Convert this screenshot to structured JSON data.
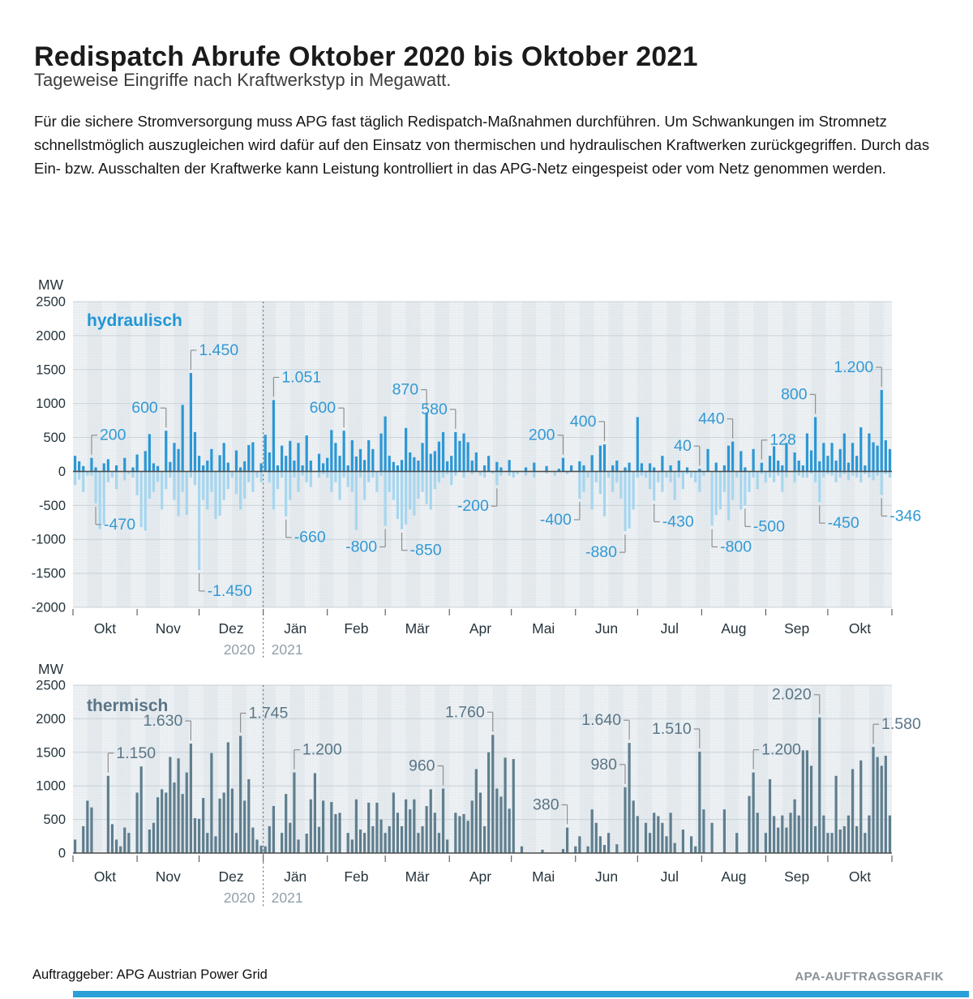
{
  "header": {
    "title": "Redispatch Abrufe Oktober 2020 bis Oktober 2021",
    "subtitle": "Tageweise Eingriffe nach Kraftwerkstyp in Megawatt.",
    "paragraph": "Für die sichere Stromversorgung muss APG fast täglich Redispatch-Maßnahmen durchführen. Um Schwankungen im Stromnetz schnellstmöglich auszugleichen wird dafür auf den Einsatz von thermischen und hydraulischen Kraftwerken zurückgegriffen. Durch das Ein- bzw. Ausschalten der Kraftwerke kann Leistung kontrolliert in das APG-Netz eingespeist oder vom Netz genommen werden."
  },
  "footer": {
    "client": "Auftraggeber: APG Austrian Power Grid",
    "credit": "APA-AUFTRAGSGRAFIK"
  },
  "colors": {
    "hydro_pos": "#2b97d5",
    "hydro_neg": "#a7d6ef",
    "hydro_label": "#2196d6",
    "thermal": "#5f7e8e",
    "thermal_label": "#5a7586",
    "annotation_hydro": "#3399d4",
    "annotation_thermal": "#5a7586",
    "axis_text": "#25343c",
    "year_text": "#8fa0ab",
    "connector": "#8f8f8f",
    "grid": "#c8d3d9",
    "zero_axis": "#4d4d4d",
    "band_a": "#edf1f4",
    "band_b": "#e4eaee",
    "dots": "#c9d4da",
    "bottom_bar": "#29a0d8"
  },
  "chart_data": [
    {
      "type": "bar",
      "title": "hydraulisch",
      "unit": "MW",
      "ylim": [
        -2000,
        2500
      ],
      "yticks": [
        2500,
        2000,
        1500,
        1000,
        500,
        0,
        -500,
        -1000,
        -1500,
        -2000
      ],
      "x_months": [
        "Okt",
        "Nov",
        "Dez",
        "Jän",
        "Feb",
        "Mär",
        "Apr",
        "Mai",
        "Jun",
        "Jul",
        "Aug",
        "Sep",
        "Okt"
      ],
      "month_days": [
        31,
        30,
        31,
        31,
        28,
        31,
        30,
        31,
        30,
        31,
        31,
        30,
        31
      ],
      "years": [
        "2020",
        "2021"
      ],
      "year_split_after_month": 3,
      "bin_days": 2,
      "series": [
        {
          "name": "positiv",
          "values": [
            230,
            150,
            80,
            0,
            200,
            60,
            0,
            120,
            180,
            0,
            90,
            0,
            200,
            0,
            60,
            250,
            0,
            300,
            550,
            120,
            80,
            0,
            600,
            140,
            420,
            330,
            980,
            0,
            1450,
            580,
            230,
            90,
            160,
            330,
            0,
            240,
            420,
            130,
            0,
            310,
            60,
            150,
            390,
            430,
            0,
            120,
            540,
            280,
            1051,
            90,
            380,
            230,
            450,
            160,
            420,
            90,
            530,
            160,
            0,
            260,
            120,
            200,
            610,
            420,
            230,
            600,
            90,
            460,
            220,
            330,
            170,
            460,
            330,
            0,
            560,
            810,
            230,
            140,
            90,
            170,
            640,
            280,
            210,
            160,
            420,
            870,
            260,
            300,
            440,
            580,
            150,
            230,
            580,
            450,
            560,
            430,
            160,
            280,
            0,
            90,
            230,
            0,
            140,
            60,
            0,
            170,
            0,
            0,
            0,
            60,
            0,
            130,
            0,
            0,
            80,
            0,
            0,
            40,
            200,
            0,
            90,
            0,
            150,
            90,
            0,
            240,
            0,
            380,
            400,
            0,
            90,
            160,
            0,
            60,
            130,
            0,
            800,
            120,
            0,
            120,
            60,
            0,
            230,
            0,
            90,
            0,
            160,
            0,
            60,
            0,
            0,
            40,
            0,
            330,
            0,
            130,
            0,
            90,
            380,
            440,
            0,
            300,
            60,
            0,
            330,
            0,
            128,
            0,
            230,
            370,
            160,
            90,
            420,
            0,
            280,
            160,
            90,
            560,
            310,
            800,
            150,
            420,
            230,
            420,
            160,
            330,
            560,
            130,
            420,
            230,
            650,
            90,
            560,
            430,
            380,
            1200,
            460,
            330
          ]
        },
        {
          "name": "negativ",
          "values": [
            -200,
            -120,
            -300,
            -60,
            -60,
            -470,
            -850,
            -780,
            -160,
            -90,
            -260,
            0,
            -130,
            -40,
            -90,
            -350,
            -820,
            -870,
            -400,
            -300,
            -150,
            -560,
            -260,
            -90,
            -420,
            -660,
            -300,
            -640,
            -90,
            -200,
            -1450,
            -420,
            -560,
            -300,
            -700,
            -650,
            -420,
            -260,
            -90,
            -330,
            -560,
            -400,
            -160,
            -300,
            -90,
            -160,
            0,
            -160,
            -560,
            -260,
            -90,
            -660,
            -420,
            -90,
            -300,
            -60,
            -160,
            -230,
            0,
            -90,
            -40,
            -90,
            -300,
            -160,
            -420,
            -90,
            -230,
            -300,
            -860,
            -90,
            -420,
            -160,
            -90,
            -300,
            -60,
            -800,
            -300,
            -420,
            -700,
            -850,
            -780,
            -560,
            -650,
            -400,
            -300,
            -480,
            -560,
            -260,
            -160,
            -90,
            -40,
            -200,
            -60,
            0,
            -90,
            0,
            -40,
            0,
            -60,
            -90,
            0,
            -30,
            -200,
            -60,
            0,
            -60,
            -90,
            -40,
            0,
            -60,
            0,
            -90,
            0,
            0,
            -30,
            0,
            -60,
            0,
            0,
            -40,
            0,
            0,
            -400,
            -300,
            -90,
            -560,
            -160,
            -330,
            -660,
            -90,
            -300,
            -160,
            -400,
            -880,
            -840,
            -560,
            -90,
            -60,
            -90,
            -260,
            -430,
            -160,
            -300,
            -90,
            -160,
            -420,
            -90,
            -260,
            -40,
            -90,
            -160,
            -300,
            -60,
            0,
            -800,
            -640,
            -560,
            -300,
            -720,
            -420,
            -90,
            -560,
            -500,
            -300,
            -90,
            -260,
            -40,
            -160,
            -90,
            -160,
            -60,
            -300,
            -90,
            0,
            -160,
            -60,
            -90,
            -90,
            -30,
            -160,
            -450,
            -90,
            -40,
            -60,
            -160,
            -90,
            -40,
            -130,
            -60,
            -90,
            -160,
            -40,
            -90,
            -130,
            -60,
            -346,
            -40,
            -90
          ]
        }
      ],
      "annotations": [
        {
          "label": "200",
          "value": 200,
          "slot": 4,
          "side": "left"
        },
        {
          "label": "600",
          "value": 600,
          "slot": 22,
          "side": "right"
        },
        {
          "label": "1.450",
          "value": 1450,
          "slot": 28,
          "side": "left"
        },
        {
          "label": "1.051",
          "value": 1051,
          "slot": 48,
          "side": "left"
        },
        {
          "label": "600",
          "value": 600,
          "slot": 65,
          "side": "right"
        },
        {
          "label": "870",
          "value": 870,
          "slot": 85,
          "side": "right"
        },
        {
          "label": "580",
          "value": 580,
          "slot": 92,
          "side": "right"
        },
        {
          "label": "200",
          "value": 200,
          "slot": 118,
          "side": "right"
        },
        {
          "label": "400",
          "value": 400,
          "slot": 128,
          "side": "right"
        },
        {
          "label": "40",
          "value": 40,
          "slot": 151,
          "side": "right"
        },
        {
          "label": "440",
          "value": 440,
          "slot": 159,
          "side": "right"
        },
        {
          "label": "128",
          "value": 128,
          "slot": 166,
          "side": "left"
        },
        {
          "label": "800",
          "value": 800,
          "slot": 179,
          "side": "right"
        },
        {
          "label": "1.200",
          "value": 1200,
          "slot": 195,
          "side": "right"
        },
        {
          "label": "-470",
          "value": -470,
          "slot": 5,
          "side": "left"
        },
        {
          "label": "-1.450",
          "value": -1450,
          "slot": 30,
          "side": "left"
        },
        {
          "label": "-660",
          "value": -660,
          "slot": 51,
          "side": "left"
        },
        {
          "label": "-800",
          "value": -800,
          "slot": 75,
          "side": "right"
        },
        {
          "label": "-850",
          "value": -850,
          "slot": 79,
          "side": "left"
        },
        {
          "label": "-200",
          "value": -200,
          "slot": 102,
          "side": "right"
        },
        {
          "label": "-400",
          "value": -400,
          "slot": 122,
          "side": "right"
        },
        {
          "label": "-880",
          "value": -880,
          "slot": 133,
          "side": "right"
        },
        {
          "label": "-430",
          "value": -430,
          "slot": 140,
          "side": "left"
        },
        {
          "label": "-800",
          "value": -800,
          "slot": 154,
          "side": "left"
        },
        {
          "label": "-500",
          "value": -500,
          "slot": 162,
          "side": "left"
        },
        {
          "label": "-450",
          "value": -450,
          "slot": 180,
          "side": "left"
        },
        {
          "label": "-346",
          "value": -346,
          "slot": 195,
          "side": "left"
        }
      ]
    },
    {
      "type": "bar",
      "title": "thermisch",
      "unit": "MW",
      "ylim": [
        0,
        2500
      ],
      "yticks": [
        2500,
        2000,
        1500,
        1000,
        500,
        0
      ],
      "x_months": [
        "Okt",
        "Nov",
        "Dez",
        "Jän",
        "Feb",
        "Mär",
        "Apr",
        "Mai",
        "Jun",
        "Jul",
        "Aug",
        "Sep",
        "Okt"
      ],
      "month_days": [
        31,
        30,
        31,
        31,
        28,
        31,
        30,
        31,
        30,
        31,
        31,
        30,
        31
      ],
      "years": [
        "2020",
        "2021"
      ],
      "year_split_after_month": 3,
      "bin_days": 2,
      "series": [
        {
          "name": "thermisch",
          "values": [
            200,
            0,
            400,
            780,
            680,
            0,
            0,
            0,
            1150,
            430,
            200,
            100,
            380,
            300,
            0,
            900,
            1290,
            0,
            350,
            450,
            830,
            950,
            900,
            1430,
            1050,
            1410,
            880,
            1200,
            1630,
            520,
            510,
            820,
            300,
            1490,
            250,
            810,
            900,
            1650,
            960,
            300,
            1745,
            780,
            1100,
            380,
            200,
            110,
            100,
            400,
            700,
            0,
            300,
            880,
            450,
            1200,
            200,
            0,
            290,
            800,
            1190,
            390,
            780,
            0,
            760,
            580,
            600,
            0,
            300,
            200,
            800,
            350,
            300,
            750,
            400,
            750,
            500,
            300,
            400,
            900,
            600,
            400,
            800,
            650,
            800,
            300,
            400,
            700,
            950,
            600,
            300,
            960,
            200,
            0,
            600,
            550,
            580,
            480,
            780,
            1250,
            900,
            400,
            1500,
            1760,
            960,
            840,
            1420,
            660,
            1400,
            0,
            100,
            0,
            0,
            0,
            0,
            50,
            0,
            0,
            0,
            0,
            60,
            380,
            0,
            100,
            250,
            0,
            100,
            650,
            450,
            250,
            120,
            300,
            0,
            130,
            0,
            980,
            1640,
            780,
            550,
            0,
            450,
            300,
            600,
            550,
            450,
            250,
            600,
            150,
            0,
            350,
            0,
            250,
            100,
            1510,
            650,
            0,
            450,
            0,
            0,
            650,
            0,
            0,
            300,
            0,
            0,
            850,
            1200,
            600,
            0,
            300,
            1100,
            550,
            380,
            560,
            380,
            600,
            800,
            560,
            1530,
            1530,
            1300,
            400,
            2020,
            560,
            300,
            300,
            1150,
            350,
            400,
            560,
            1250,
            400,
            1380,
            300,
            560,
            1580,
            1430,
            1300,
            1450,
            560
          ]
        }
      ],
      "annotations": [
        {
          "label": "1.150",
          "value": 1150,
          "slot": 8,
          "side": "left"
        },
        {
          "label": "1.630",
          "value": 1630,
          "slot": 28,
          "side": "right"
        },
        {
          "label": "1.745",
          "value": 1745,
          "slot": 40,
          "side": "left"
        },
        {
          "label": "1.200",
          "value": 1200,
          "slot": 53,
          "side": "left"
        },
        {
          "label": "960",
          "value": 960,
          "slot": 89,
          "side": "right"
        },
        {
          "label": "1.760",
          "value": 1760,
          "slot": 101,
          "side": "right"
        },
        {
          "label": "380",
          "value": 380,
          "slot": 119,
          "side": "right"
        },
        {
          "label": "980",
          "value": 980,
          "slot": 133,
          "side": "right"
        },
        {
          "label": "1.640",
          "value": 1640,
          "slot": 134,
          "side": "right"
        },
        {
          "label": "1.510",
          "value": 1510,
          "slot": 151,
          "side": "right"
        },
        {
          "label": "1.200",
          "value": 1200,
          "slot": 164,
          "side": "left"
        },
        {
          "label": "2.020",
          "value": 2020,
          "slot": 180,
          "side": "right"
        },
        {
          "label": "1.580",
          "value": 1580,
          "slot": 193,
          "side": "left"
        }
      ]
    }
  ]
}
